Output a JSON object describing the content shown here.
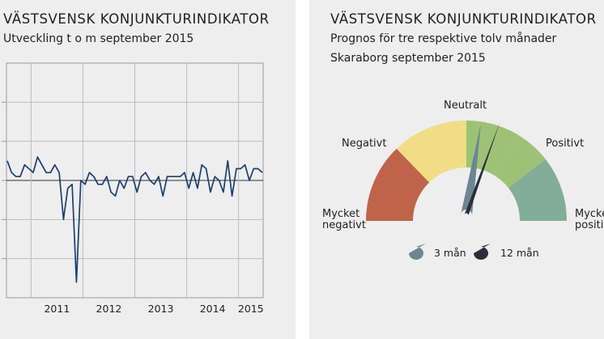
{
  "left_panel": {
    "title": "VÄSTSVENSK KONJUNKTURINDIKATOR",
    "subtitle": "Utveckling t o m september 2015"
  },
  "right_panel": {
    "title": "VÄSTSVENSK KONJUNKTURINDIKATOR",
    "subtitle_line1": "Prognos för tre respektive tolv månader",
    "subtitle_line2": "Skaraborg september 2015"
  },
  "chart_data": [
    {
      "type": "line",
      "title": "VÄSTSVENSK KONJUNKTURINDIKATOR",
      "subtitle": "Utveckling t o m september 2015",
      "x_tick_labels": [
        "2011",
        "2012",
        "2013",
        "2014",
        "2015"
      ],
      "ylim": [
        -3,
        3
      ],
      "grid": true,
      "line_color": "#1c3f6e",
      "series": [
        {
          "values": [
            0.5,
            0.2,
            0.1,
            0.1,
            0.4,
            0.3,
            0.2,
            0.6,
            0.4,
            0.2,
            0.2,
            0.4,
            0.2,
            -1.0,
            -0.2,
            -0.1,
            -2.6,
            0.0,
            -0.1,
            0.2,
            0.1,
            -0.1,
            -0.1,
            0.1,
            -0.3,
            -0.4,
            0.0,
            -0.2,
            0.1,
            0.1,
            -0.3,
            0.1,
            0.2,
            0.0,
            -0.1,
            0.1,
            -0.4,
            0.1,
            0.1,
            0.1,
            0.1,
            0.2,
            -0.2,
            0.2,
            -0.2,
            0.4,
            0.3,
            -0.3,
            0.1,
            0.0,
            -0.3,
            0.5,
            -0.4,
            0.3,
            0.3,
            0.4,
            0.0,
            0.3,
            0.3,
            0.2
          ]
        }
      ]
    },
    {
      "type": "gauge",
      "title": "VÄSTSVENSK KONJUNKTURINDIKATOR",
      "subtitle": "Prognos för tre respektive tolv månader — Skaraborg september 2015",
      "segments": [
        {
          "label": "Mycket negativt",
          "color": "#bf634b"
        },
        {
          "label": "Negativt",
          "color": "#f1dd85"
        },
        {
          "label": "Neutralt",
          "color": "#9dc276"
        },
        {
          "label": "Positivt",
          "color": "#9dc276"
        },
        {
          "label": "Mycket positivt",
          "color": "#82ad98"
        }
      ],
      "series": [
        {
          "name": "3 mån",
          "color": "#6b8793",
          "value": 0.55
        },
        {
          "name": "12 mån",
          "color": "#2b2f3c",
          "value": 0.61
        }
      ]
    }
  ]
}
